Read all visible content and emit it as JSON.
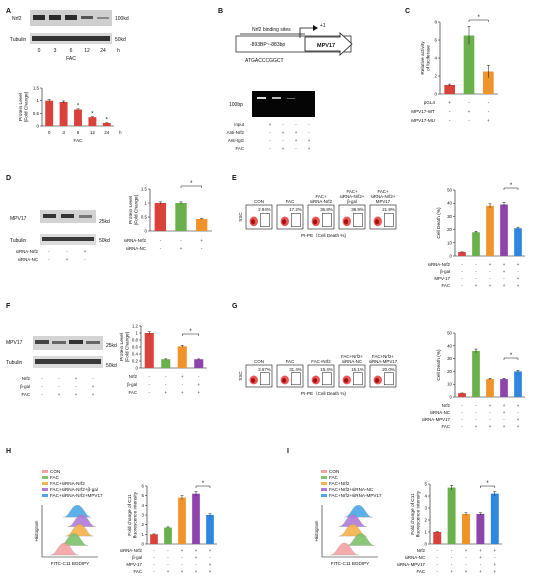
{
  "panels": {
    "A": {
      "letter": "A",
      "blot_labels": {
        "protein": "Nrf2",
        "loading": "Tubulin",
        "protein_size": "100kd",
        "loading_size": "50kd"
      },
      "lanes": [
        "0",
        "3",
        "6",
        "12",
        "24"
      ],
      "treatment": "FAC",
      "unit": "h",
      "chart_data": {
        "type": "bar",
        "ylabel": "Protein Level (Fold Change)",
        "xlabel": "FAC",
        "categories": [
          "0",
          "3",
          "6",
          "12",
          "24"
        ],
        "values": [
          1.0,
          0.95,
          0.65,
          0.35,
          0.12
        ],
        "ylim": [
          0,
          1.5
        ],
        "yticks": [
          "0",
          "0.5",
          "1",
          "1.5"
        ],
        "significance": [
          "",
          "",
          "*",
          "*",
          "*"
        ],
        "colors": [
          "#d9423b"
        ]
      }
    },
    "B": {
      "letter": "B",
      "binding_title": "Nrf2 binding sites",
      "binding_range": "-893BP~-883bp",
      "plus_one": "+1",
      "gene": "MPV17",
      "sequence": "ATGACCCGGCT",
      "gel_size": "100bp",
      "rows": [
        {
          "label": "Input",
          "marks": [
            "+",
            "-",
            "-",
            "-"
          ]
        },
        {
          "label": "Anti-Nrf2",
          "marks": [
            "-",
            "+",
            "+",
            "-"
          ]
        },
        {
          "label": "Anti-IgG",
          "marks": [
            "-",
            "-",
            "+",
            "+"
          ]
        },
        {
          "label": "FAC",
          "marks": [
            "-",
            "+",
            "-",
            "+"
          ]
        }
      ]
    },
    "C": {
      "letter": "C",
      "chart_data": {
        "type": "bar",
        "ylabel": "Relative activity of luciferase",
        "categories": [
          "pGL4",
          "MPV17-WT",
          "MPV17-MU"
        ],
        "values": [
          1.0,
          6.5,
          2.5
        ],
        "errors": [
          0.1,
          1.0,
          0.7
        ],
        "ylim": [
          0,
          8
        ],
        "yticks": [
          "0",
          "2",
          "4",
          "6",
          "8"
        ],
        "significance_label": "*",
        "colors": [
          "#d9423b",
          "#6ab04c",
          "#f0932b"
        ]
      },
      "rows": [
        {
          "label": "pGL4",
          "marks": [
            "+",
            "-",
            "-"
          ]
        },
        {
          "label": "MPV17-WT",
          "marks": [
            "-",
            "+",
            "-"
          ]
        },
        {
          "label": "MPV17-MU",
          "marks": [
            "-",
            "-",
            "+"
          ]
        }
      ]
    },
    "D": {
      "letter": "D",
      "blot_labels": {
        "protein": "MPV17",
        "loading": "Tubulin",
        "protein_size": "25kd",
        "loading_size": "50kd"
      },
      "rows": [
        {
          "label": "siRNA-Nrf2",
          "marks": [
            "-",
            "-",
            "+"
          ]
        },
        {
          "label": "siRNA-NC",
          "marks": [
            "-",
            "+",
            "-"
          ]
        }
      ],
      "chart_data": {
        "type": "bar",
        "ylabel": "Protein Level (Fold Change)",
        "categories": [
          "1",
          "2",
          "3"
        ],
        "values": [
          1.0,
          1.0,
          0.43
        ],
        "ylim": [
          0,
          1.5
        ],
        "yticks": [
          "0",
          "0.5",
          "1",
          "1.5"
        ],
        "significance_label": "*",
        "colors": [
          "#d9423b",
          "#6ab04c",
          "#f0932b"
        ]
      },
      "chart_rows": [
        {
          "label": "siRNA-Nrf2",
          "marks": [
            "-",
            "-",
            "+"
          ]
        },
        {
          "label": "siRNA-NC",
          "marks": [
            "-",
            "+",
            "-"
          ]
        }
      ]
    },
    "E": {
      "letter": "E",
      "flow_labels": [
        "CON",
        "FAC",
        "FAC+ siRNA-Nrf2",
        "FAC+ siRNA-Nrf2+ β-gal",
        "FAC+ siRNA-Nrf2+ MPV17"
      ],
      "percents": [
        "2.94%",
        "17.2%",
        "36.8%",
        "38.9%",
        "21.9%"
      ],
      "y_axis": "SSC",
      "x_axis": "PI-PE（Cell Death %)",
      "chart_data": {
        "type": "bar",
        "ylabel": "Cell Death (%)",
        "categories": [
          "1",
          "2",
          "3",
          "4",
          "5"
        ],
        "values": [
          3,
          18,
          38,
          39,
          21
        ],
        "ylim": [
          0,
          50
        ],
        "yticks": [
          "0",
          "10",
          "20",
          "30",
          "40",
          "50"
        ],
        "significance_label": "*",
        "colors": [
          "#d9423b",
          "#6ab04c",
          "#f0932b",
          "#8e44ad",
          "#2e86de"
        ]
      },
      "chart_rows": [
        {
          "label": "siRNA-Nrf2",
          "marks": [
            "-",
            "-",
            "+",
            "+",
            "+"
          ]
        },
        {
          "label": "β-gal",
          "marks": [
            "-",
            "-",
            "-",
            "+",
            "-"
          ]
        },
        {
          "label": "MPV-17",
          "marks": [
            "-",
            "-",
            "-",
            "-",
            "+"
          ]
        },
        {
          "label": "FAC",
          "marks": [
            "-",
            "+",
            "+",
            "+",
            "+"
          ]
        }
      ]
    },
    "F": {
      "letter": "F",
      "blot_labels": {
        "protein": "MPV17",
        "loading": "Tubulin",
        "protein_size": "25kd",
        "loading_size": "50kd"
      },
      "rows": [
        {
          "label": "Nrf2",
          "marks": [
            "-",
            "-",
            "+",
            "-"
          ]
        },
        {
          "label": "β-gal",
          "marks": [
            "-",
            "-",
            "-",
            "+"
          ]
        },
        {
          "label": "FAC",
          "marks": [
            "-",
            "+",
            "+",
            "+"
          ]
        }
      ],
      "chart_data": {
        "type": "bar",
        "ylabel": "Protein Level (Fold Change)",
        "categories": [
          "1",
          "2",
          "3",
          "4"
        ],
        "values": [
          1.0,
          0.25,
          0.62,
          0.25
        ],
        "ylim": [
          0,
          1.2
        ],
        "yticks": [
          "0",
          "0.2",
          "0.4",
          "0.6",
          "0.8",
          "1",
          "1.2"
        ],
        "significance_label": "*",
        "colors": [
          "#d9423b",
          "#6ab04c",
          "#f0932b",
          "#8e44ad"
        ]
      },
      "chart_rows": [
        {
          "label": "Nrf2",
          "marks": [
            "-",
            "-",
            "+",
            "-"
          ]
        },
        {
          "label": "β-gal",
          "marks": [
            "-",
            "-",
            "-",
            "+"
          ]
        },
        {
          "label": "FAC",
          "marks": [
            "-",
            "+",
            "+",
            "+"
          ]
        }
      ]
    },
    "G": {
      "letter": "G",
      "flow_labels": [
        "CON",
        "FAC",
        "FAC+Nrf2",
        "FAC+Nrf2+ siRNA-NC",
        "FAC+Nrf2+ siRNA-MPV17"
      ],
      "percents": [
        "3.67%",
        "31.4%",
        "15.4%",
        "15.1%",
        "20.0%"
      ],
      "y_axis": "SSC",
      "x_axis": "PI-PE（Cell Death %)",
      "chart_data": {
        "type": "bar",
        "ylabel": "Cell Death (%)",
        "categories": [
          "1",
          "2",
          "3",
          "4",
          "5"
        ],
        "values": [
          3,
          36,
          14,
          14,
          20
        ],
        "ylim": [
          0,
          50
        ],
        "yticks": [
          "0",
          "10",
          "20",
          "30",
          "40",
          "50"
        ],
        "significance_label": "*",
        "colors": [
          "#d9423b",
          "#6ab04c",
          "#f0932b",
          "#8e44ad",
          "#2e86de"
        ]
      },
      "chart_rows": [
        {
          "label": "Nrf2",
          "marks": [
            "-",
            "-",
            "+",
            "+",
            "+"
          ]
        },
        {
          "label": "siRNA-NC",
          "marks": [
            "-",
            "-",
            "-",
            "+",
            "-"
          ]
        },
        {
          "label": "siRNA-MPV17",
          "marks": [
            "-",
            "-",
            "-",
            "-",
            "+"
          ]
        },
        {
          "label": "FAC",
          "marks": [
            "-",
            "+",
            "+",
            "+",
            "+"
          ]
        }
      ]
    },
    "H": {
      "letter": "H",
      "legend": [
        "CON",
        "FAC",
        "FAC+siRNA-Nrf2",
        "FAC+siRNA-Nrf2+β-gal",
        "FAC+siRNA-Nrf2+MPV17"
      ],
      "y_axis": "Histogram",
      "x_axis": "FITC-C11 BODIPY",
      "chart_data": {
        "type": "bar",
        "ylabel": "Fold change of C11 fluorescence intensity",
        "categories": [
          "1",
          "2",
          "3",
          "4",
          "5"
        ],
        "values": [
          1.0,
          1.7,
          4.8,
          5.2,
          3.0
        ],
        "ylim": [
          0,
          6
        ],
        "yticks": [
          "0",
          "1",
          "2",
          "3",
          "4",
          "5",
          "6"
        ],
        "significance_label": "*",
        "colors": [
          "#d9423b",
          "#6ab04c",
          "#f0932b",
          "#8e44ad",
          "#2e86de"
        ]
      },
      "chart_rows": [
        {
          "label": "siRNA-Nrf2",
          "marks": [
            "-",
            "-",
            "+",
            "+",
            "+"
          ]
        },
        {
          "label": "β-gal",
          "marks": [
            "-",
            "-",
            "-",
            "+",
            "-"
          ]
        },
        {
          "label": "MPV-17",
          "marks": [
            "-",
            "-",
            "-",
            "-",
            "+"
          ]
        },
        {
          "label": "FAC",
          "marks": [
            "-",
            "+",
            "+",
            "+",
            "+"
          ]
        }
      ]
    },
    "I": {
      "letter": "I",
      "legend": [
        "CON",
        "FAC",
        "FAC+Nrf2",
        "FAC+Nrf2+siRNA-NC",
        "FAC+Nrf2+siRNA-MPV17"
      ],
      "y_axis": "Histogram",
      "x_axis": "FITC-C11 BODIPY",
      "chart_data": {
        "type": "bar",
        "ylabel": "Fold change of C11 fluorescence intensity",
        "categories": [
          "1",
          "2",
          "3",
          "4",
          "5"
        ],
        "values": [
          1.0,
          4.7,
          2.5,
          2.5,
          4.2
        ],
        "ylim": [
          0,
          5
        ],
        "yticks": [
          "0",
          "1",
          "2",
          "3",
          "4",
          "5"
        ],
        "significance_label": "*",
        "colors": [
          "#d9423b",
          "#6ab04c",
          "#f0932b",
          "#8e44ad",
          "#2e86de"
        ]
      },
      "chart_rows": [
        {
          "label": "Nrf2",
          "marks": [
            "-",
            "-",
            "+",
            "+",
            "+"
          ]
        },
        {
          "label": "siRNA-NC",
          "marks": [
            "-",
            "-",
            "-",
            "+",
            "-"
          ]
        },
        {
          "label": "siRNA-MPV17",
          "marks": [
            "-",
            "-",
            "-",
            "-",
            "+"
          ]
        },
        {
          "label": "FAC",
          "marks": [
            "-",
            "+",
            "+",
            "+",
            "+"
          ]
        }
      ]
    }
  }
}
